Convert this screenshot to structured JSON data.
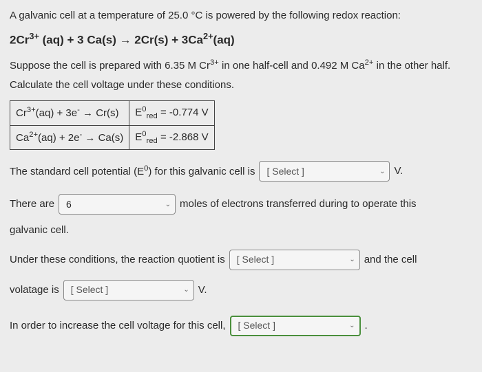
{
  "intro": "A galvanic cell at a temperature of 25.0 °C is powered by the following redox reaction:",
  "equation_html": "2Cr<sup>3+</sup> (aq) + 3 Ca(s) → 2Cr(s) + 3Ca<sup>2+</sup>(aq)",
  "prep_html": "Suppose the cell is prepared with 6.35 M Cr<sup>3+</sup> in one half-cell and 0.492 M Ca<sup>2+</sup> in the other half.",
  "calc": "Calculate the cell voltage under these conditions.",
  "half1_rxn_html": "Cr<sup>3+</sup>(aq) + 3e<sup>-</sup> → Cr(s)",
  "half1_e_html": "E<sup>0</sup><sub>red</sub> = -0.774 V",
  "half2_rxn_html": "Ca<sup>2+</sup>(aq) + 2e<sup>-</sup> → Ca(s)",
  "half2_e_html": "E<sup>0</sup><sub>red</sub> = -2.868 V",
  "q1_pre_html": "The standard cell potential (E<sup>0</sup>) for this galvanic cell is",
  "select_placeholder": "[ Select ]",
  "v_label": "V.",
  "q2_pre": "There are",
  "moles_value": "6",
  "q2_post": "moles of electrons transferred during to operate this",
  "q2_cont": "galvanic cell.",
  "q3_pre": "Under these conditions, the reaction quotient is",
  "q3_post": "and the cell",
  "q4_pre": "volatage is",
  "q5_pre": "In order to increase the cell voltage for this cell,"
}
